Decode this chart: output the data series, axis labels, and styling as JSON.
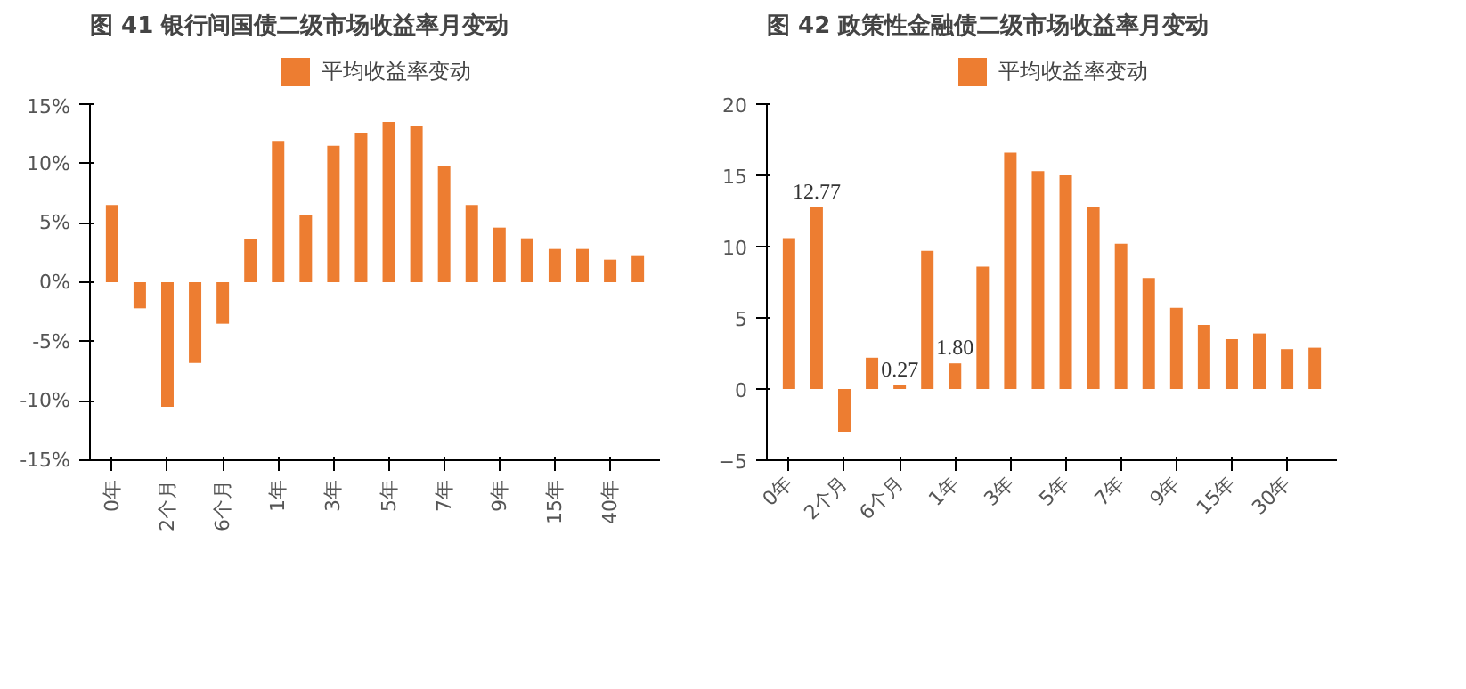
{
  "chart_data": [
    {
      "type": "bar",
      "title": "图 41 银行间国债二级市场收益率月变动",
      "categories": [
        "0年",
        null,
        "2个月",
        null,
        "6个月",
        null,
        "1年",
        null,
        "3年",
        null,
        "5年",
        null,
        "7年",
        null,
        "9年",
        null,
        "15年",
        null,
        "40年",
        null
      ],
      "series": [
        {
          "name": "平均收益率变动",
          "color": "#ed7d31",
          "values": [
            6.5,
            -2.2,
            -10.5,
            -6.8,
            -3.5,
            3.6,
            11.9,
            5.7,
            11.5,
            12.6,
            13.5,
            13.2,
            9.8,
            6.5,
            4.6,
            3.7,
            2.8,
            2.8,
            1.9,
            2.2
          ]
        }
      ],
      "ylim": [
        -15,
        15
      ],
      "yticks": [
        {
          "value": -15,
          "label": "-15%"
        },
        {
          "value": -10,
          "label": "-10%"
        },
        {
          "value": -5,
          "label": "-5%"
        },
        {
          "value": 0,
          "label": "0%"
        },
        {
          "value": 5,
          "label": "5%"
        },
        {
          "value": 10,
          "label": "10%"
        },
        {
          "value": 15,
          "label": "15%"
        }
      ],
      "legend": "top",
      "grid": false
    },
    {
      "type": "bar",
      "title": "图 42 政策性金融债二级市场收益率月变动",
      "categories": [
        "0年",
        null,
        "2个月",
        null,
        "6个月",
        null,
        "1年",
        null,
        "3年",
        null,
        "5年",
        null,
        "7年",
        null,
        "9年",
        null,
        "15年",
        null,
        "30年",
        null
      ],
      "series": [
        {
          "name": "平均收益率变动",
          "color": "#ed7d31",
          "values": [
            10.6,
            12.77,
            -3.0,
            2.2,
            0.27,
            9.7,
            1.8,
            8.6,
            16.6,
            15.3,
            15.0,
            12.8,
            10.2,
            7.8,
            5.7,
            4.5,
            3.5,
            3.9,
            2.8,
            2.9
          ],
          "value_labels": [
            null,
            "12.77",
            null,
            null,
            "0.27",
            null,
            "1.80",
            null,
            null,
            null,
            null,
            null,
            null,
            null,
            null,
            null,
            null,
            null,
            null,
            null
          ]
        }
      ],
      "ylim": [
        -5,
        20
      ],
      "yticks": [
        -5,
        0,
        5,
        10,
        15,
        20
      ],
      "legend": "top",
      "grid": false
    }
  ]
}
